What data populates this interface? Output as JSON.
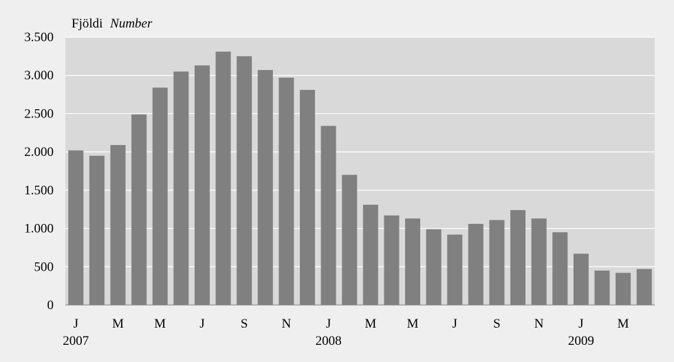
{
  "chart_data": {
    "type": "bar",
    "unit_label": "Fjöldi",
    "unit_label_italic": "Number",
    "ylim": [
      0,
      3500
    ],
    "yticks": [
      0,
      500,
      1000,
      1500,
      2000,
      2500,
      3000,
      3500
    ],
    "ytick_labels": [
      "0",
      "500",
      "1.000",
      "1.500",
      "2.000",
      "2.500",
      "3.000",
      "3.500"
    ],
    "grid": true,
    "colors": {
      "background": "#efefef",
      "plot_area": "#d9d9d9",
      "bar": "#808080",
      "grid": "#ffffff"
    },
    "categories": [
      "2007-01",
      "2007-02",
      "2007-03",
      "2007-04",
      "2007-05",
      "2007-06",
      "2007-07",
      "2007-08",
      "2007-09",
      "2007-10",
      "2007-11",
      "2007-12",
      "2008-01",
      "2008-02",
      "2008-03",
      "2008-04",
      "2008-05",
      "2008-06",
      "2008-07",
      "2008-08",
      "2008-09",
      "2008-10",
      "2008-11",
      "2008-12",
      "2009-01",
      "2009-02",
      "2009-03",
      "2009-04"
    ],
    "values": [
      2020,
      1950,
      2090,
      2490,
      2840,
      3050,
      3130,
      3310,
      3250,
      3070,
      2970,
      2810,
      2340,
      1700,
      1310,
      1170,
      1130,
      990,
      920,
      1060,
      1110,
      1240,
      1130,
      950,
      670,
      450,
      420,
      470
    ],
    "month_labels": [
      {
        "index": 0,
        "label": "J"
      },
      {
        "index": 2,
        "label": "M"
      },
      {
        "index": 4,
        "label": "M"
      },
      {
        "index": 6,
        "label": "J"
      },
      {
        "index": 8,
        "label": "S"
      },
      {
        "index": 10,
        "label": "N"
      },
      {
        "index": 12,
        "label": "J"
      },
      {
        "index": 14,
        "label": "M"
      },
      {
        "index": 16,
        "label": "M"
      },
      {
        "index": 18,
        "label": "J"
      },
      {
        "index": 20,
        "label": "S"
      },
      {
        "index": 22,
        "label": "N"
      },
      {
        "index": 24,
        "label": "J"
      },
      {
        "index": 26,
        "label": "M"
      }
    ],
    "year_labels": [
      {
        "index": 0,
        "label": "2007"
      },
      {
        "index": 12,
        "label": "2008"
      },
      {
        "index": 24,
        "label": "2009"
      }
    ]
  }
}
